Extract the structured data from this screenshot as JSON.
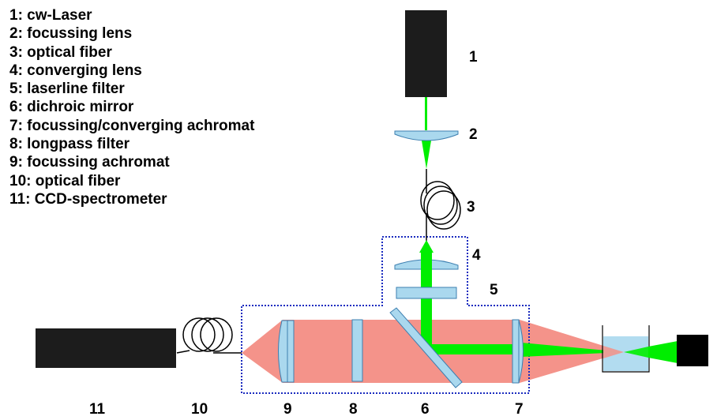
{
  "legend": [
    "1: cw-Laser",
    "2: focussing lens",
    "3: optical fiber",
    "4: converging lens",
    "5: laserline filter",
    "6: dichroic mirror",
    "7: focussing/converging achromat",
    "8: longpass filter",
    "9: focussing achromat",
    "10: optical fiber",
    "11: CCD-spectrometer"
  ],
  "labels": {
    "n1": "1",
    "n2": "2",
    "n3": "3",
    "n4": "4",
    "n5": "5",
    "n6": "6",
    "n7": "7",
    "n8": "8",
    "n9": "9",
    "n10": "10",
    "n11": "11"
  },
  "colors": {
    "laser_green": "#00ee00",
    "signal_red": "#f4938a",
    "optic_blue": "#aad8ee",
    "box_dotted": "#1a2bbf",
    "component_black": "#1c1c1c"
  }
}
